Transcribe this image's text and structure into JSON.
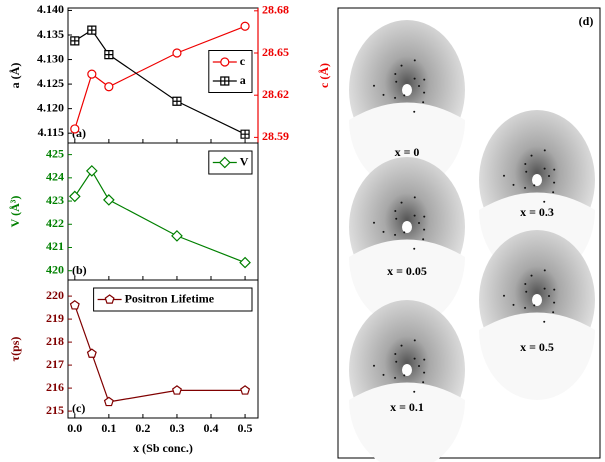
{
  "chart_data": [
    {
      "type": "line",
      "panel_label": "(a)",
      "ylabel": "a (Å)",
      "y2label": "c (Å)",
      "x": [
        0,
        0.05,
        0.1,
        0.3,
        0.5
      ],
      "xlim": [
        -0.02,
        0.538
      ],
      "ylim": [
        4.113,
        4.1405
      ],
      "yticks": [
        4.115,
        {
          "value": 4.12,
          "label": "4.120"
        },
        4.125,
        {
          "value": 4.13,
          "label": "4.130"
        },
        4.135,
        {
          "value": 4.14,
          "label": "4.140"
        }
      ],
      "y2lim": [
        28.586,
        28.682
      ],
      "y2ticks": [
        28.59,
        28.62,
        28.65,
        28.68
      ],
      "legend_loc": "center right",
      "series": [
        {
          "name": "c",
          "color": "#ee0000",
          "marker": "circle",
          "axis": "y2",
          "values": [
            28.596,
            28.635,
            28.626,
            28.65,
            28.669
          ]
        },
        {
          "name": "a",
          "color": "#000000",
          "marker": "square-cross",
          "values": [
            4.1338,
            4.136,
            4.131,
            4.1215,
            4.1148
          ]
        }
      ]
    },
    {
      "type": "line",
      "panel_label": "(b)",
      "ylabel": "V (Å³)",
      "x": [
        0,
        0.05,
        0.1,
        0.3,
        0.5
      ],
      "xlim": [
        -0.02,
        0.538
      ],
      "ylim": [
        419.6,
        425.5
      ],
      "yticks": [
        420,
        421,
        422,
        423,
        424,
        425
      ],
      "legend_loc": "upper right",
      "series": [
        {
          "name": "V",
          "color": "#008000",
          "marker": "diamond",
          "values": [
            423.2,
            424.3,
            423.05,
            421.5,
            420.35
          ]
        }
      ]
    },
    {
      "type": "line",
      "panel_label": "(c)",
      "ylabel": "τ(ps)",
      "xlabel": "x (Sb conc.)",
      "x": [
        0,
        0.05,
        0.1,
        0.3,
        0.5
      ],
      "xlim": [
        -0.02,
        0.538
      ],
      "xticks": [
        {
          "value": 0,
          "label": "0.0"
        },
        0.1,
        0.2,
        0.3,
        0.4,
        0.5
      ],
      "ylim": [
        214.7,
        220.7
      ],
      "yticks": [
        215,
        216,
        217,
        218,
        219,
        220
      ],
      "legend_loc": "upper right",
      "series": [
        {
          "name": "Positron Lifetime",
          "color": "#800000",
          "marker": "pentagon",
          "values": [
            219.6,
            217.5,
            215.4,
            215.9,
            215.9
          ]
        }
      ]
    }
  ],
  "panel_d": {
    "label": "(d)",
    "images": [
      "x = 0",
      "x = 0.3",
      "x = 0.05",
      "x = 0.5",
      "x = 0.1"
    ]
  }
}
